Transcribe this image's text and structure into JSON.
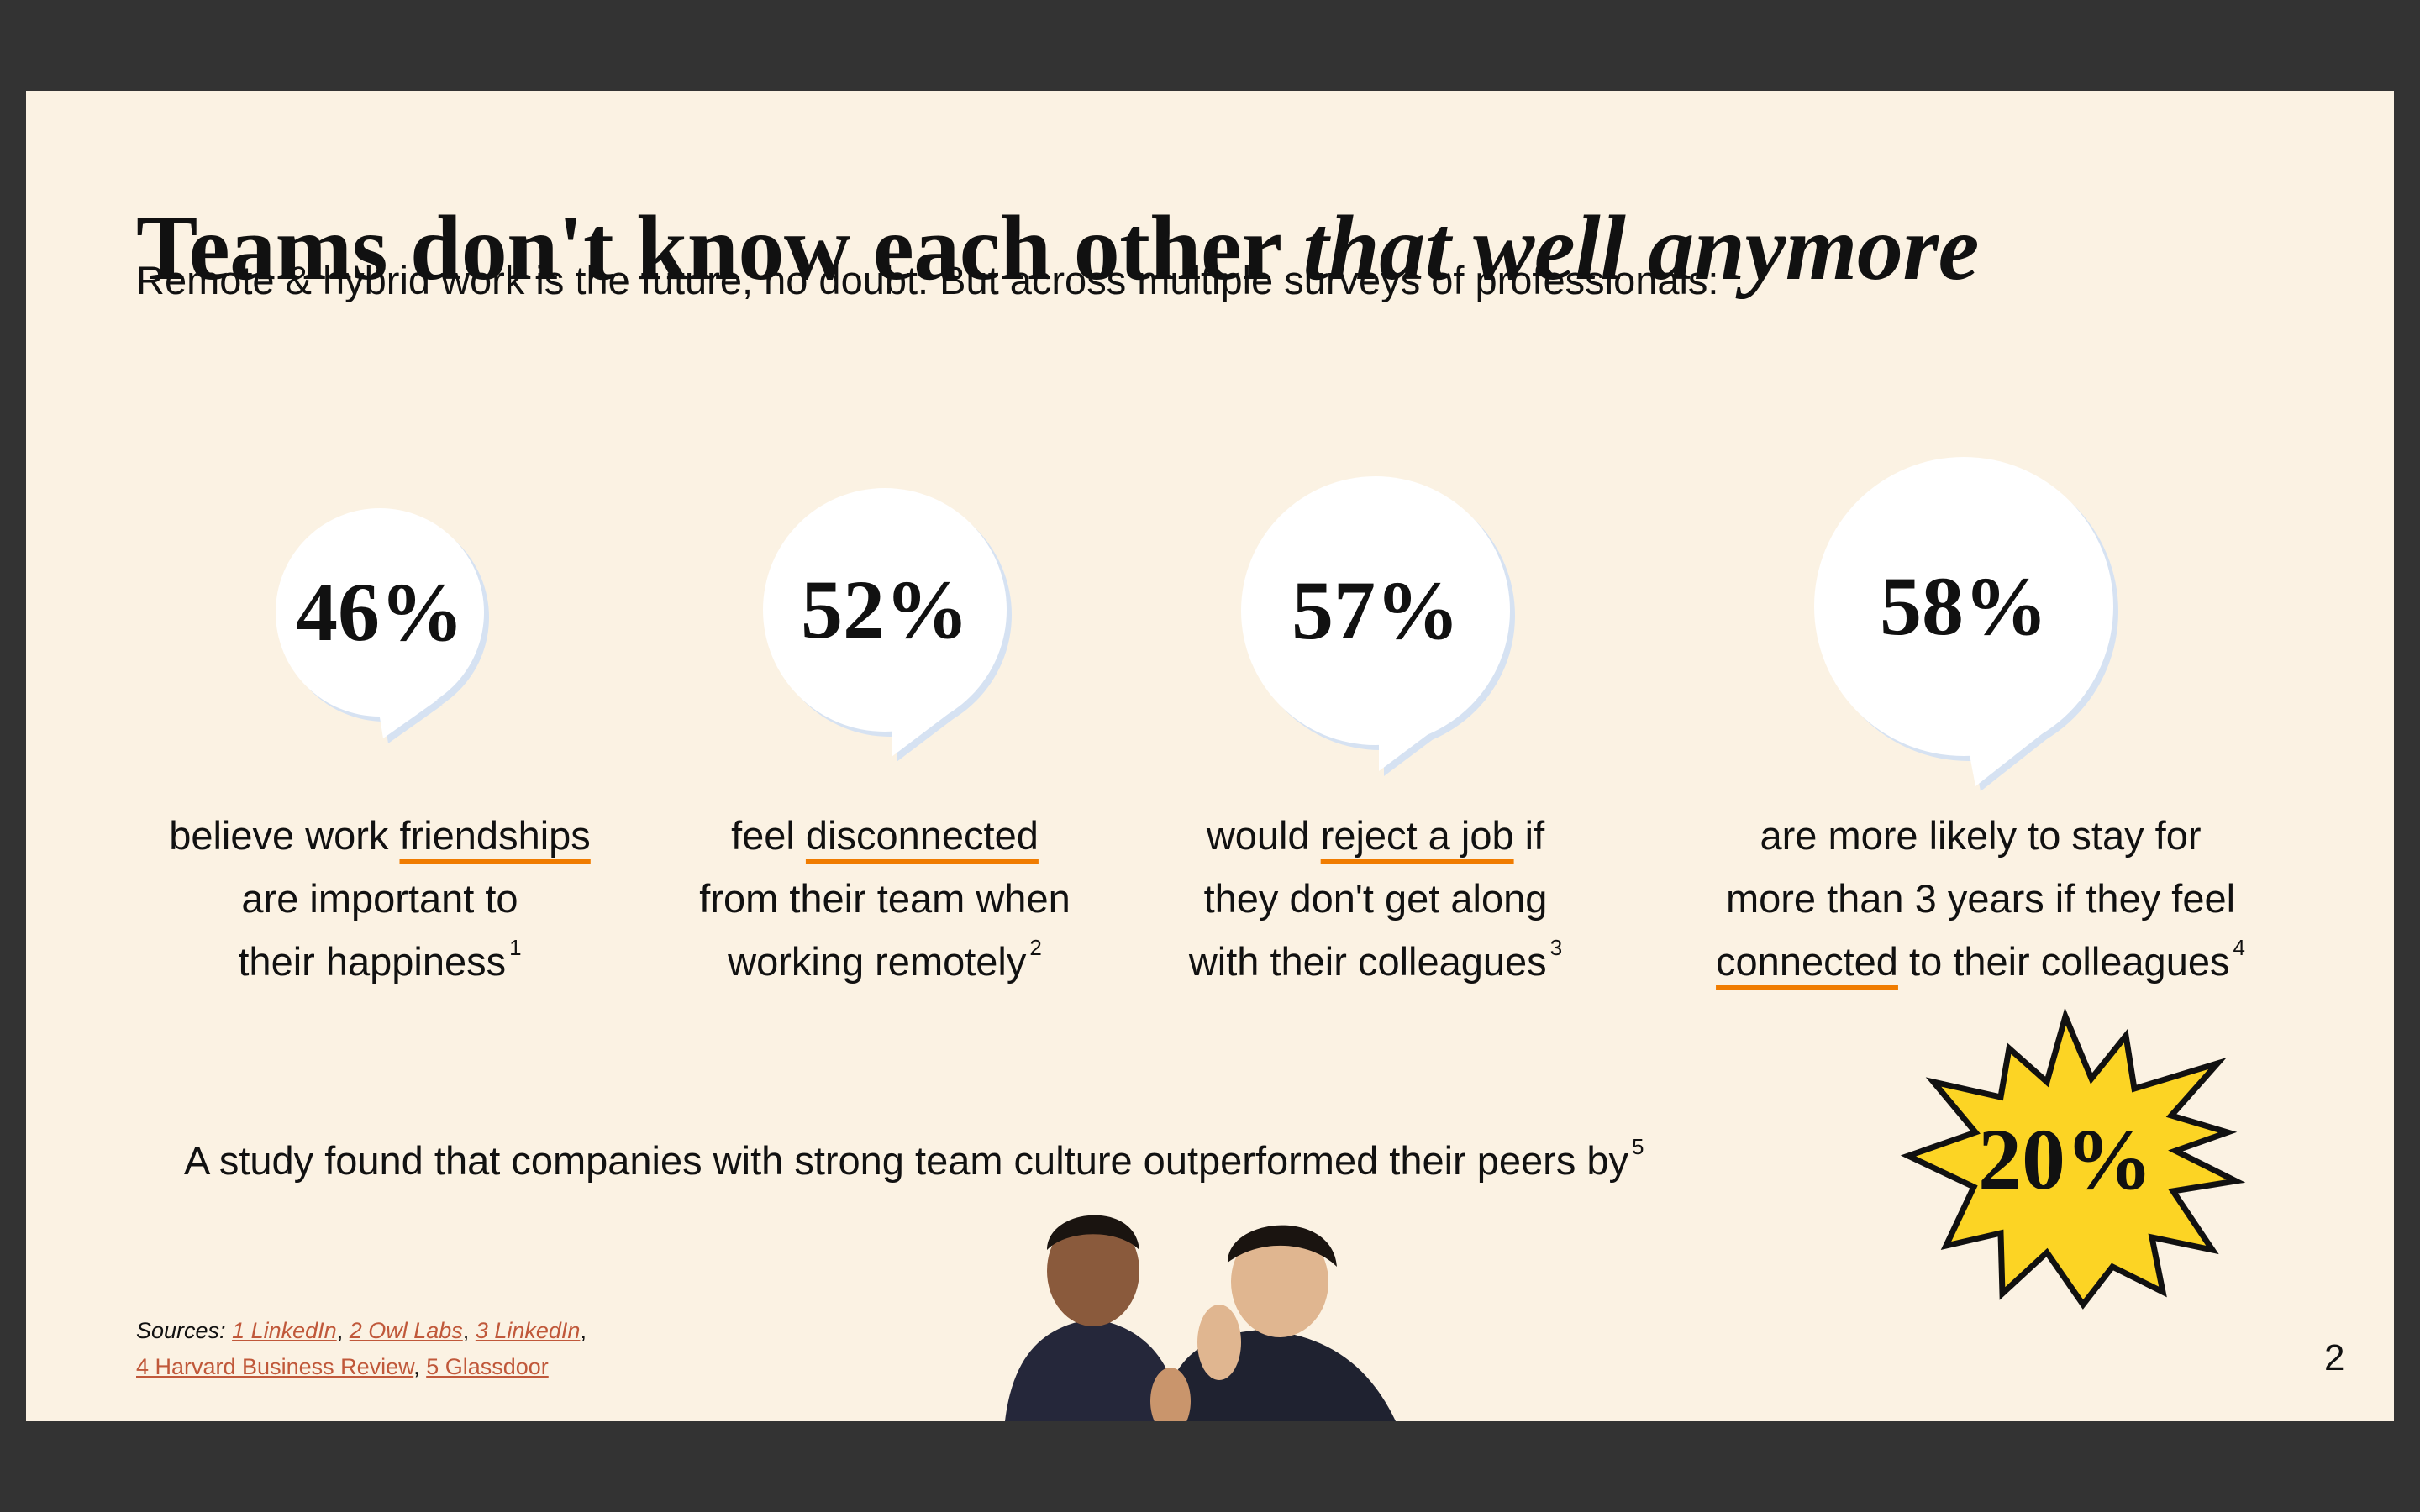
{
  "title": {
    "plain": "Teams don't know each other",
    "italic": "that well anymore"
  },
  "subtitle": "Remote & hybrid work is the future, no doubt. But across multiple surveys of professionals:",
  "stats": [
    {
      "value": "46%",
      "lines": [
        [
          "believe work ",
          "friendships"
        ],
        [
          "are important to"
        ],
        [
          "their happiness"
        ]
      ],
      "footnote": "1"
    },
    {
      "value": "52%",
      "lines": [
        [
          "feel ",
          "disconnected"
        ],
        [
          "from their team when"
        ],
        [
          "working remotely"
        ]
      ],
      "footnote": "2"
    },
    {
      "value": "57%",
      "lines": [
        [
          "would ",
          "reject a job",
          " if"
        ],
        [
          "they don't get along"
        ],
        [
          "with their colleagues"
        ]
      ],
      "footnote": "3"
    },
    {
      "value": "58%",
      "lines": [
        [
          "are more likely to stay for"
        ],
        [
          "more than 3 years if they feel"
        ],
        [
          "connected",
          " to their colleagues"
        ]
      ],
      "footnote": "4"
    }
  ],
  "study": {
    "text": "A study found that companies with strong team culture outperformed their peers by",
    "footnote": "5",
    "value": "20%"
  },
  "sources": {
    "label": "Sources:",
    "separator": ",",
    "links": [
      "1 LinkedIn",
      "2 Owl Labs",
      "3 LinkedIn",
      "4 Harvard Business Review",
      "5 Glassdoor"
    ]
  },
  "page_number": "2"
}
